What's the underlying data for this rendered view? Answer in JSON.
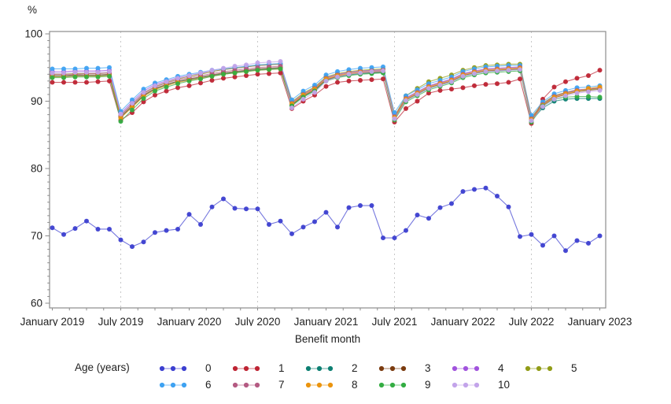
{
  "chart_data": {
    "type": "line",
    "title": "",
    "ylabel": "%",
    "xlabel": "Benefit month",
    "legend_title": "Age (years)",
    "legend_position": "bottom",
    "ylim": [
      60,
      100
    ],
    "y_ticks": [
      60,
      70,
      80,
      90,
      100
    ],
    "y_minor_tick_step": 1,
    "x_tick_labels": [
      "January 2019",
      "July 2019",
      "January 2020",
      "July 2020",
      "January 2021",
      "July 2021",
      "January 2022",
      "July 2022",
      "January 2023"
    ],
    "x_tick_indices": [
      0,
      6,
      12,
      18,
      24,
      30,
      36,
      42,
      48
    ],
    "x_minor_ticks_per_half_year": 4,
    "gridline_indices": [
      6,
      18,
      30,
      42
    ],
    "grid_style": "dashed-vertical-only",
    "months": [
      "2019-01",
      "2019-02",
      "2019-03",
      "2019-04",
      "2019-05",
      "2019-06",
      "2019-07",
      "2019-08",
      "2019-09",
      "2019-10",
      "2019-11",
      "2019-12",
      "2020-01",
      "2020-02",
      "2020-03",
      "2020-04",
      "2020-05",
      "2020-06",
      "2020-07",
      "2020-08",
      "2020-09",
      "2020-10",
      "2020-11",
      "2020-12",
      "2021-01",
      "2021-02",
      "2021-03",
      "2021-04",
      "2021-05",
      "2021-06",
      "2021-07",
      "2021-08",
      "2021-09",
      "2021-10",
      "2021-11",
      "2021-12",
      "2022-01",
      "2022-02",
      "2022-03",
      "2022-04",
      "2022-05",
      "2022-06",
      "2022-07",
      "2022-08",
      "2022-09",
      "2022-10",
      "2022-11",
      "2022-12",
      "2023-01"
    ],
    "legend_rows": [
      [
        "0",
        "1",
        "2",
        "3",
        "4",
        "5"
      ],
      [
        "6",
        "7",
        "8",
        "9",
        "10"
      ]
    ],
    "colors": {
      "axis": "#8c8c8c",
      "grid": "#c8c8c8",
      "text": "#1f1f1f"
    },
    "series": [
      {
        "name": "0",
        "color": "#3c3fd0",
        "values": [
          71.2,
          70.2,
          71.1,
          72.2,
          71,
          71,
          69.4,
          68.4,
          69.1,
          70.5,
          70.8,
          71,
          73.2,
          71.7,
          74.3,
          75.5,
          74.1,
          74,
          74,
          71.7,
          72.2,
          70.3,
          71.3,
          72.1,
          73.5,
          71.3,
          74.2,
          74.5,
          74.5,
          69.7,
          69.7,
          70.8,
          73.1,
          72.6,
          74.2,
          74.8,
          76.6,
          76.9,
          77.1,
          75.9,
          74.3,
          69.9,
          70.2,
          68.6,
          70,
          67.8,
          69.3,
          68.9,
          70
        ]
      },
      {
        "name": "1",
        "color": "#be2433",
        "values": [
          92.8,
          92.8,
          92.8,
          92.8,
          92.9,
          93,
          87.2,
          88.3,
          89.9,
          90.9,
          91.5,
          92,
          92.3,
          92.7,
          93.1,
          93.4,
          93.6,
          93.8,
          94,
          94.1,
          94.2,
          88.9,
          90,
          90.9,
          92.2,
          92.8,
          93,
          93.1,
          93.2,
          93.3,
          86.9,
          88.9,
          90,
          91.2,
          91.6,
          91.8,
          92,
          92.3,
          92.5,
          92.6,
          92.8,
          93.3,
          86.7,
          90.3,
          92.1,
          92.9,
          93.4,
          93.8,
          94.6
        ]
      },
      {
        "name": "2",
        "color": "#0d7f72",
        "values": [
          93.7,
          93.7,
          93.8,
          93.8,
          93.8,
          93.9,
          87.6,
          89.2,
          90.8,
          91.8,
          92.4,
          92.9,
          93.2,
          93.5,
          93.8,
          94.1,
          94.3,
          94.5,
          94.7,
          94.8,
          94.9,
          89.4,
          90.7,
          91.6,
          93.1,
          93.6,
          93.9,
          94.1,
          94.2,
          94.3,
          87.4,
          90.1,
          91,
          91.9,
          92.4,
          92.9,
          93.7,
          94.1,
          94.4,
          94.5,
          94.6,
          94.7,
          87.1,
          89,
          90,
          90.3,
          90.4,
          90.4,
          90.4
        ]
      },
      {
        "name": "3",
        "color": "#7a3b0f",
        "values": [
          93.8,
          93.8,
          93.9,
          93.9,
          93.9,
          94,
          87.7,
          89.3,
          90.9,
          91.9,
          92.5,
          93,
          93.3,
          93.6,
          93.9,
          94.2,
          94.4,
          94.6,
          94.8,
          94.9,
          95,
          89.5,
          90.8,
          91.7,
          93.2,
          93.7,
          94,
          94.2,
          94.3,
          94.4,
          87.5,
          90.2,
          91.1,
          92,
          92.5,
          93,
          93.8,
          94.2,
          94.5,
          94.6,
          94.7,
          94.8,
          87.2,
          89.4,
          90.5,
          91,
          91.4,
          91.6,
          91.8
        ]
      },
      {
        "name": "4",
        "color": "#a153dd",
        "values": [
          94.4,
          94.4,
          94.5,
          94.5,
          94.5,
          94.6,
          88.2,
          89.9,
          91.5,
          92.5,
          93,
          93.5,
          93.8,
          94.1,
          94.4,
          94.7,
          94.9,
          95.1,
          95.3,
          95.4,
          95.5,
          89.8,
          91.1,
          92,
          93.5,
          94,
          94.3,
          94.5,
          94.6,
          94.7,
          87.8,
          90.5,
          91.4,
          92.3,
          92.8,
          93.3,
          94.1,
          94.5,
          94.8,
          94.9,
          95,
          95.1,
          87.5,
          89.6,
          90.8,
          91.3,
          91.7,
          91.8,
          92
        ]
      },
      {
        "name": "5",
        "color": "#919c17",
        "values": [
          94,
          94,
          94.1,
          94.1,
          94.1,
          94.2,
          87.9,
          89.6,
          91.2,
          92.2,
          92.8,
          93.3,
          93.7,
          94,
          94.4,
          94.7,
          94.9,
          95.1,
          95.3,
          95.4,
          95.5,
          89.9,
          91.2,
          92.1,
          93.6,
          94.1,
          94.4,
          94.6,
          94.7,
          94.8,
          87.7,
          90.8,
          91.9,
          92.9,
          93.4,
          93.9,
          94.6,
          95,
          95.3,
          95.4,
          95.5,
          95.5,
          87.6,
          89.7,
          90.8,
          91.3,
          91.6,
          91.7,
          91.9
        ]
      },
      {
        "name": "6",
        "color": "#3ea2f2",
        "values": [
          94.8,
          94.8,
          94.8,
          94.9,
          94.9,
          95,
          88.5,
          90.2,
          91.8,
          92.7,
          93.2,
          93.7,
          94,
          94.3,
          94.6,
          94.8,
          95,
          95.2,
          95.4,
          95.5,
          95.6,
          90.2,
          91.5,
          92.4,
          93.9,
          94.4,
          94.7,
          94.9,
          95,
          95.1,
          88.3,
          90.8,
          91.7,
          92.6,
          93.1,
          93.6,
          94.4,
          94.8,
          95.1,
          95.2,
          95.3,
          95.3,
          87.9,
          89.9,
          91.1,
          91.6,
          92,
          92.1,
          92.3
        ]
      },
      {
        "name": "7",
        "color": "#b45a82",
        "values": [
          94,
          94,
          94,
          94.1,
          94.1,
          94.2,
          87.9,
          89.5,
          91.1,
          92.1,
          92.7,
          93.2,
          93.5,
          93.8,
          94.1,
          94.4,
          94.6,
          94.8,
          95,
          95.1,
          95.2,
          89.7,
          91,
          91.9,
          93.4,
          93.9,
          94.2,
          94.4,
          94.5,
          94.6,
          87.7,
          90.4,
          91.3,
          92.2,
          92.7,
          93.2,
          94,
          94.4,
          94.7,
          94.8,
          94.9,
          95,
          87.4,
          89.5,
          90.7,
          91.2,
          91.6,
          91.8,
          92
        ]
      },
      {
        "name": "8",
        "color": "#eb940e",
        "values": [
          93.6,
          93.6,
          93.7,
          93.7,
          93.7,
          93.8,
          87.5,
          89.1,
          90.7,
          91.7,
          92.3,
          92.8,
          93.1,
          93.4,
          93.7,
          94,
          94.2,
          94.4,
          94.6,
          94.7,
          94.8,
          89.6,
          90.9,
          91.8,
          93.3,
          93.8,
          94.1,
          94.3,
          94.4,
          94.5,
          87.6,
          90.3,
          91.2,
          92.1,
          92.6,
          93.1,
          93.9,
          94.3,
          94.6,
          94.7,
          94.8,
          94.9,
          87.3,
          89.4,
          90.6,
          91.1,
          91.5,
          91.9,
          92.1
        ]
      },
      {
        "name": "9",
        "color": "#33ad42",
        "values": [
          93.5,
          93.5,
          93.6,
          93.6,
          93.6,
          93.7,
          87,
          88.7,
          90.4,
          91.5,
          92.1,
          92.6,
          93,
          93.3,
          93.7,
          94,
          94.2,
          94.4,
          94.6,
          94.7,
          94.8,
          89.3,
          90.6,
          91.5,
          93,
          93.5,
          93.8,
          94,
          94.1,
          94.2,
          87.2,
          89.9,
          90.8,
          91.7,
          92.2,
          92.7,
          93.5,
          93.9,
          94.2,
          94.3,
          94.4,
          94.5,
          86.9,
          89.3,
          90.3,
          90.6,
          90.7,
          90.7,
          90.6
        ]
      },
      {
        "name": "10",
        "color": "#c3a4ea",
        "values": [
          94.2,
          94.2,
          94.3,
          94.3,
          94.3,
          94.4,
          88.1,
          89.7,
          91.3,
          92.3,
          92.9,
          93.4,
          93.8,
          94.2,
          94.6,
          94.9,
          95.2,
          95.4,
          95.7,
          95.8,
          95.9,
          89,
          90.3,
          91.3,
          93,
          93.6,
          94,
          94.2,
          94.4,
          94.5,
          87.4,
          90.1,
          91,
          91.9,
          92.4,
          92.9,
          93.7,
          94.1,
          94.4,
          94.5,
          94.6,
          94.7,
          87.1,
          89.2,
          90.3,
          90.8,
          91.2,
          91.4,
          91.6
        ]
      }
    ]
  }
}
